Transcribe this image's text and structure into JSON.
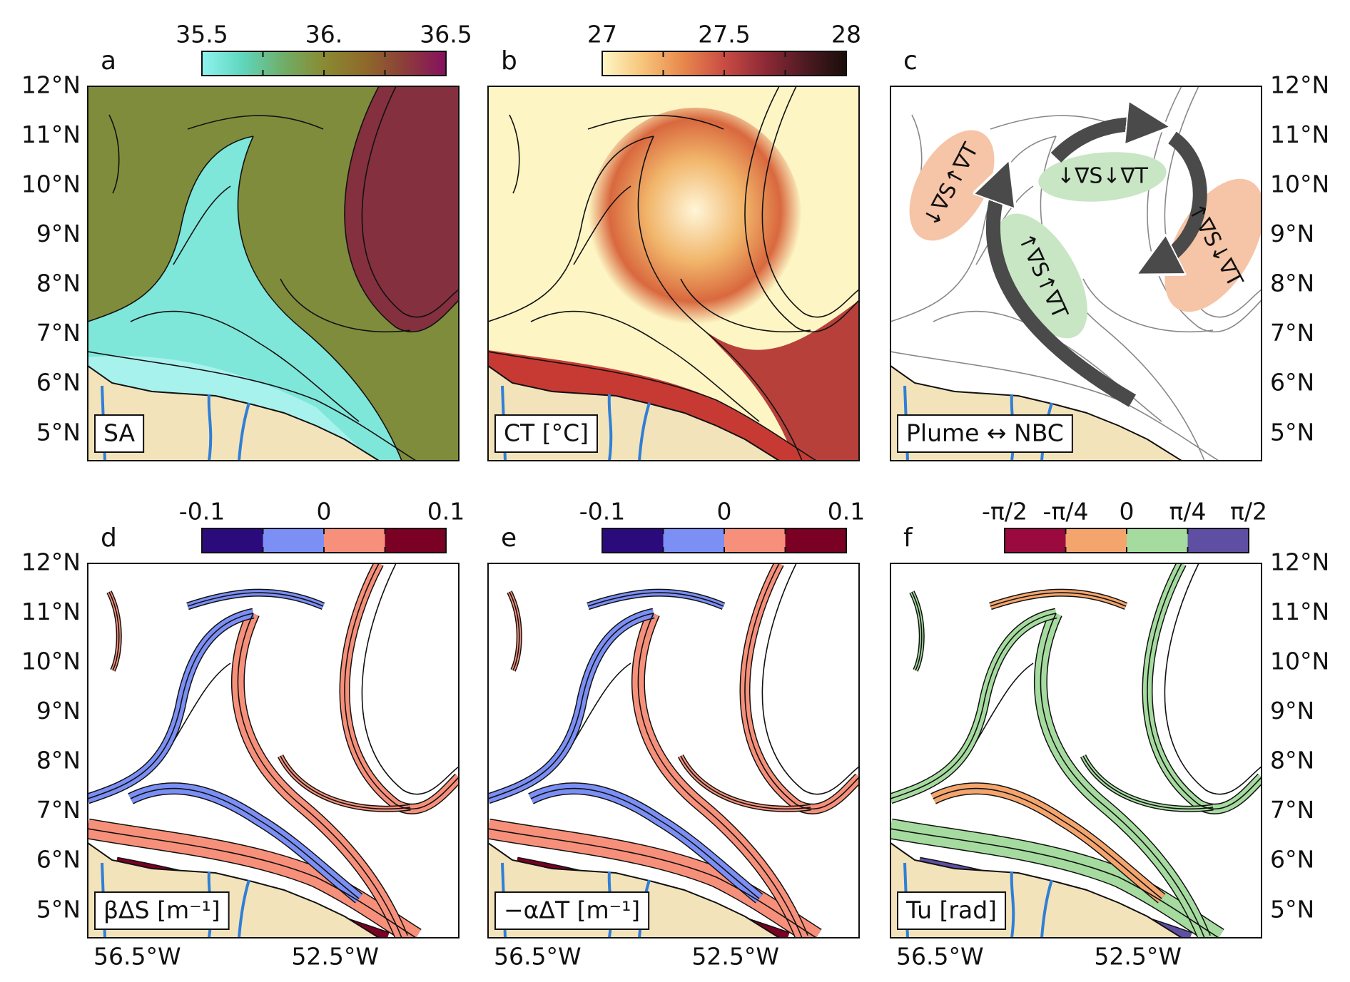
{
  "map": {
    "xlim": [
      -57.5,
      -50
    ],
    "ylim": [
      4.45,
      12
    ],
    "xticks": [
      {
        "value": -56.5,
        "label": "56.5°W"
      },
      {
        "value": -52.5,
        "label": "52.5°W"
      }
    ],
    "yticks": [
      {
        "value": 5,
        "label": "5°N"
      },
      {
        "value": 6,
        "label": "6°N"
      },
      {
        "value": 7,
        "label": "7°N"
      },
      {
        "value": 8,
        "label": "8°N"
      },
      {
        "value": 9,
        "label": "9°N"
      },
      {
        "value": 10,
        "label": "10°N"
      },
      {
        "value": 11,
        "label": "11°N"
      },
      {
        "value": 12,
        "label": "12°N"
      }
    ]
  },
  "panels": [
    {
      "letter": "a",
      "label": "SA",
      "colorbar": {
        "range": [
          35.5,
          36.5
        ],
        "ticks": [
          35.5,
          {
            "value": 36,
            "label": "36."
          },
          36.5
        ],
        "minor_ticks": [
          35.75,
          36.25
        ],
        "discrete": false,
        "colors": [
          "#8ff3f0",
          "#5fd6bd",
          "#6fae68",
          "#8a8a32",
          "#8f6a2a",
          "#8c3d3a",
          "#861060"
        ]
      }
    },
    {
      "letter": "b",
      "label": "CT [°C]",
      "colorbar": {
        "range": [
          27,
          28
        ],
        "ticks": [
          27,
          27.5,
          28
        ],
        "minor_ticks": [
          27.25,
          27.75
        ],
        "discrete": false,
        "colors": [
          "#fef7c6",
          "#f7c47a",
          "#e8874c",
          "#c94c44",
          "#8e2a36",
          "#4e1a22",
          "#1a0d0a"
        ]
      }
    },
    {
      "letter": "c",
      "label": "Plume ↔ NBC",
      "annotations": [
        "↓∇S↑∇T",
        "↓∇S↓∇T",
        "↑∇S↑∇T",
        "↑∇S↓∇T"
      ]
    },
    {
      "letter": "d",
      "label": "βΔS [m⁻¹]",
      "colorbar": {
        "range": [
          -0.1,
          0.1
        ],
        "ticks": [
          -0.1,
          0,
          0.1
        ],
        "minor_ticks": [
          -0.05,
          0.05
        ],
        "discrete": true,
        "colors": [
          "#2b0a7c",
          "#7b8ff5",
          "#f7907a",
          "#7a0024"
        ]
      }
    },
    {
      "letter": "e",
      "label": "−αΔT [m⁻¹]",
      "colorbar": {
        "range": [
          -0.1,
          0.1
        ],
        "ticks": [
          -0.1,
          0,
          0.1
        ],
        "minor_ticks": [
          -0.05,
          0.05
        ],
        "discrete": true,
        "colors": [
          "#2b0a7c",
          "#7b8ff5",
          "#f7907a",
          "#7a0024"
        ]
      }
    },
    {
      "letter": "f",
      "label": "Tu [rad]",
      "colorbar": {
        "range": [
          -1.5708,
          1.5708
        ],
        "ticks": [
          {
            "value": -1.5708,
            "label": "-π/2"
          },
          {
            "value": -0.7854,
            "label": "-π/4"
          },
          0,
          {
            "value": 0.7854,
            "label": "π/4"
          },
          {
            "value": 1.5708,
            "label": "π/2"
          }
        ],
        "minor_ticks": [],
        "discrete": true,
        "colors": [
          "#9b0a3e",
          "#f4a56d",
          "#a6dba0",
          "#5e4fa2"
        ]
      }
    }
  ]
}
